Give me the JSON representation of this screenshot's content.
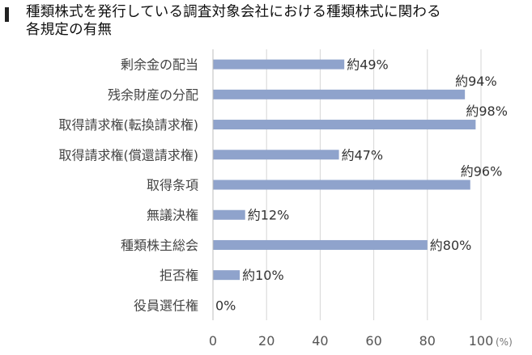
{
  "chart_data": {
    "type": "bar",
    "orientation": "horizontal",
    "title": "種類株式を発行している調査対象会社における種類株式に関わる\n各規定の有無",
    "categories": [
      "剰余金の配当",
      "残余財産の分配",
      "取得請求権(転換請求権)",
      "取得請求権(償還請求権)",
      "取得条項",
      "無議決権",
      "種類株主総会",
      "拒否権",
      "役員選任権"
    ],
    "values": [
      49,
      94,
      98,
      47,
      96,
      12,
      80,
      10,
      0
    ],
    "data_labels": [
      "約49%",
      "約94%",
      "約98%",
      "約47%",
      "約96%",
      "約12%",
      "約80%",
      "約10%",
      "0%"
    ],
    "xlim": [
      0,
      100
    ],
    "x_ticks": [
      "0",
      "20",
      "40",
      "60",
      "80",
      "100"
    ],
    "x_unit": "(%)",
    "grid": "vertical",
    "bar_color": "#8fa3cc"
  }
}
